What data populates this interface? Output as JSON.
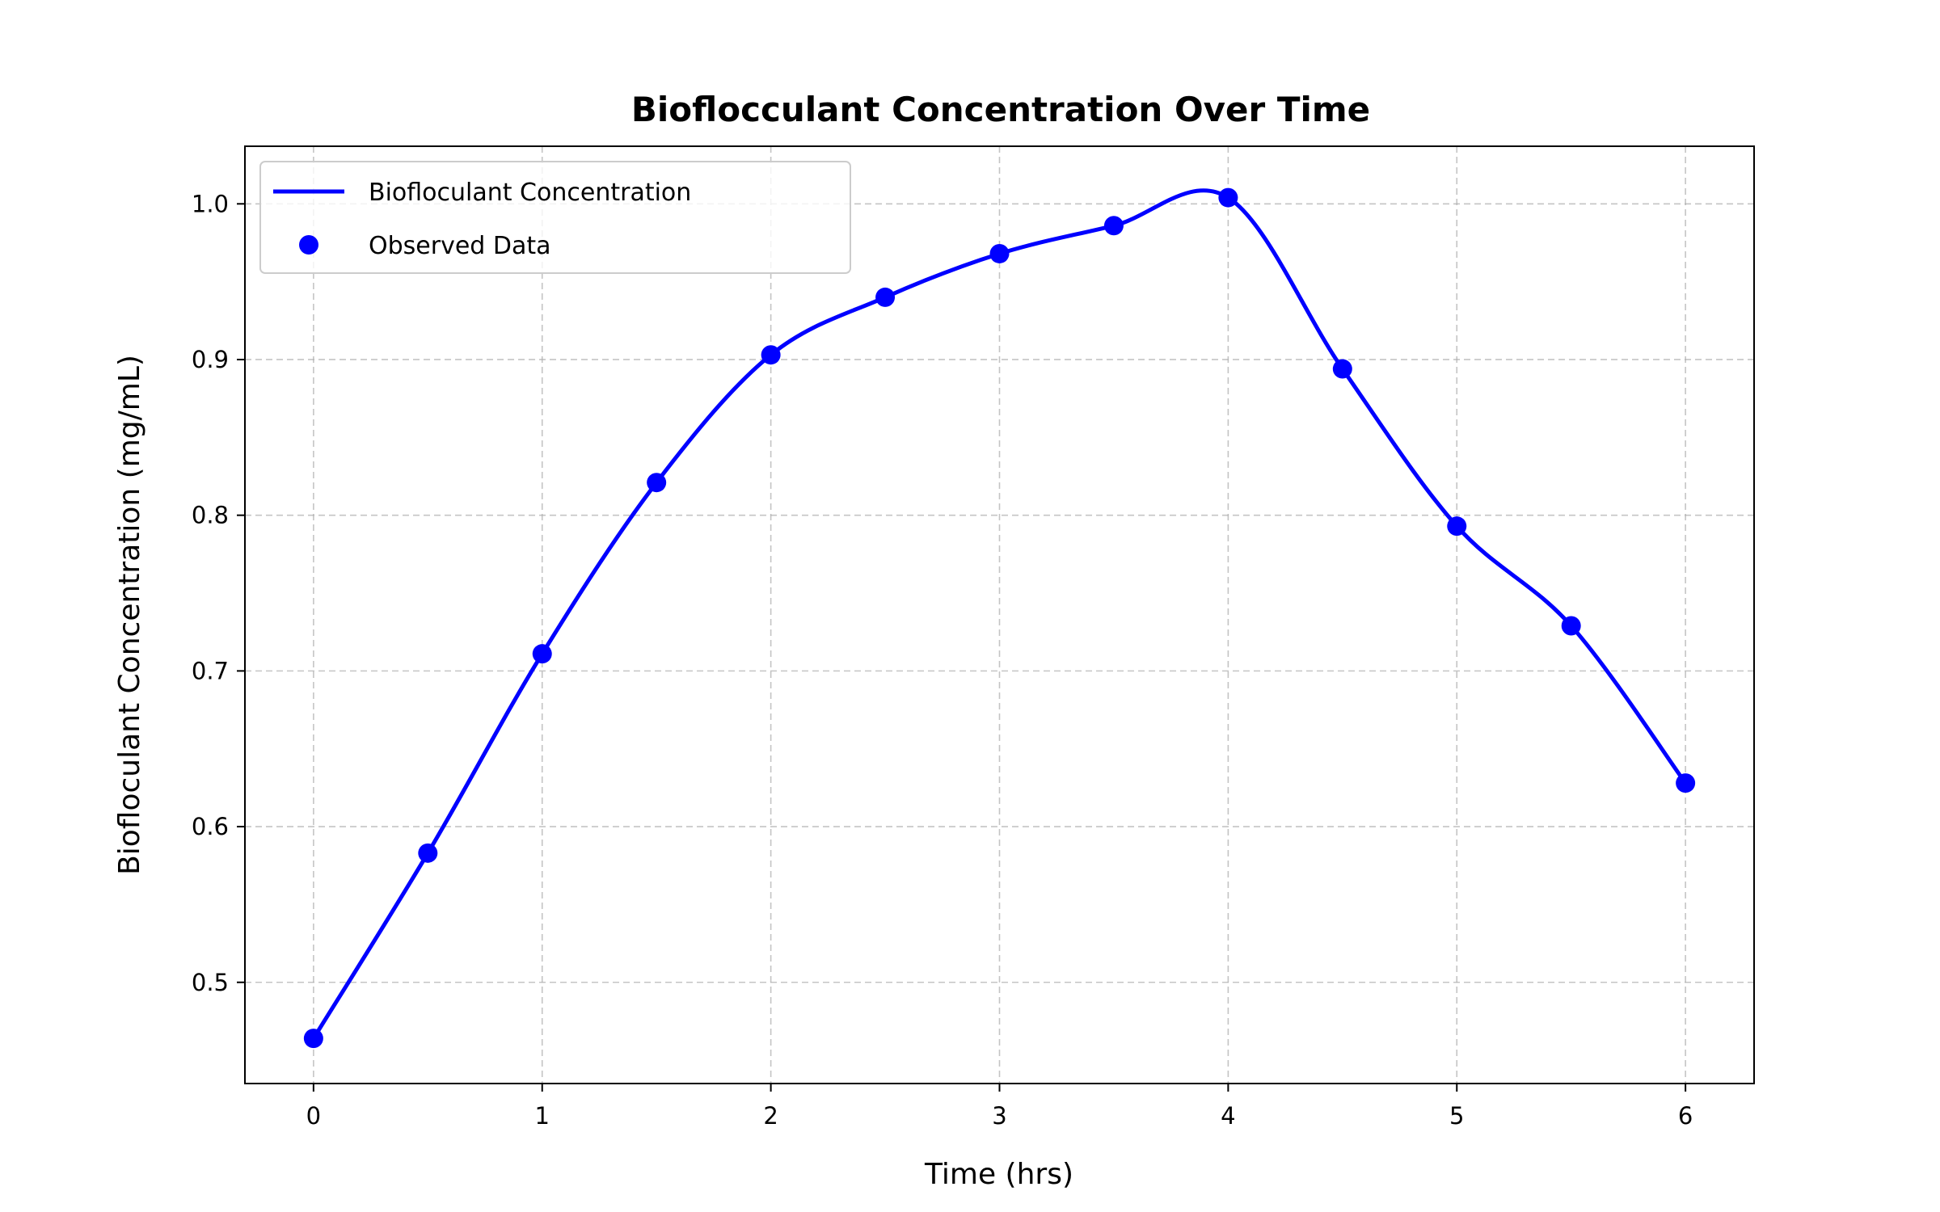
{
  "chart_data": {
    "type": "line",
    "title": "Bioflocculant Concentration Over Time",
    "xlabel": "Time (hrs)",
    "ylabel": "Biofloculant Concentration (mg/mL)",
    "xlim": [
      -0.3,
      6.3
    ],
    "ylim": [
      0.435,
      1.037
    ],
    "xticks": [
      0,
      1,
      2,
      3,
      4,
      5,
      6
    ],
    "xtick_labels": [
      "0",
      "1",
      "2",
      "3",
      "4",
      "5",
      "6"
    ],
    "yticks": [
      0.5,
      0.6,
      0.7,
      0.8,
      0.9,
      1.0
    ],
    "ytick_labels": [
      "0.5",
      "0.6",
      "0.7",
      "0.8",
      "0.9",
      "1.0"
    ],
    "grid": true,
    "legend_position": "top-left",
    "x": [
      0,
      0.5,
      1,
      1.5,
      2,
      2.5,
      3,
      3.5,
      4,
      4.5,
      5,
      5.5,
      6
    ],
    "series": [
      {
        "name": "Biofloculant Concentration",
        "kind": "line",
        "color": "#0000ff",
        "values": [
          0.464,
          0.583,
          0.711,
          0.821,
          0.903,
          0.94,
          0.968,
          0.986,
          1.004,
          0.894,
          0.793,
          0.729,
          0.628
        ]
      },
      {
        "name": "Observed Data",
        "kind": "scatter",
        "color": "#0000ff",
        "values": [
          0.464,
          0.583,
          0.711,
          0.821,
          0.903,
          0.94,
          0.968,
          0.986,
          1.004,
          0.894,
          0.793,
          0.729,
          0.628
        ]
      }
    ]
  }
}
